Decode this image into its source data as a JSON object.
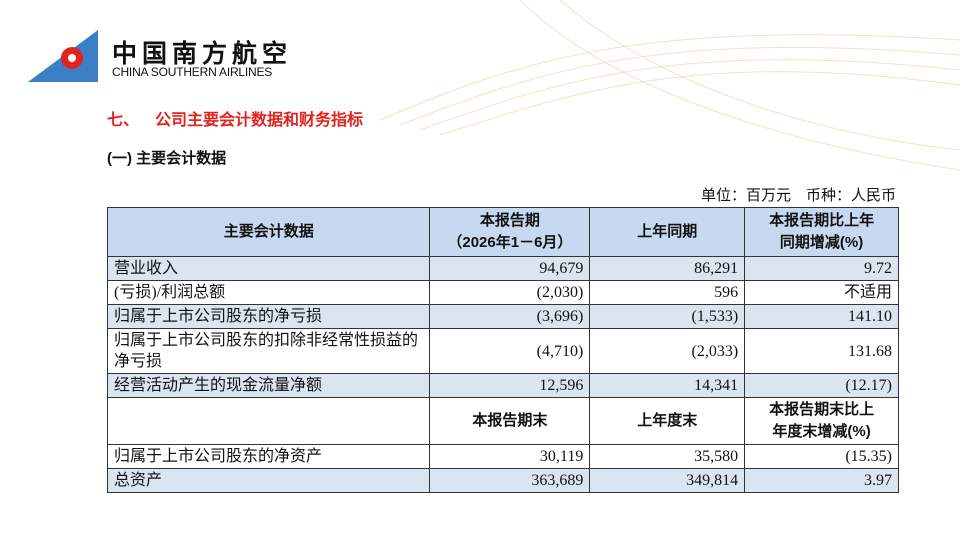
{
  "logo": {
    "name_cn": "中国南方航空",
    "name_en": "CHINA SOUTHERN AIRLINES"
  },
  "section": {
    "number": "七、",
    "title": "公司主要会计数据和财务指标"
  },
  "subsection": "(一) 主要会计数据",
  "unit_note": "单位：百万元　币种：人民币",
  "table": {
    "header": [
      "主要会计数据",
      [
        "本报告期",
        "（2026年1－6月）"
      ],
      "上年同期",
      [
        "本报告期比上年",
        "同期增减(%)"
      ]
    ],
    "rows": [
      [
        "营业收入",
        "94,679",
        "86,291",
        "9.72"
      ],
      [
        "(亏损)/利润总额",
        "(2,030)",
        "596",
        "不适用"
      ],
      [
        "归属于上市公司股东的净亏损",
        "(3,696)",
        "(1,533)",
        "141.10"
      ],
      [
        "归属于上市公司股东的扣除非经常性损益的净亏损",
        "(4,710)",
        "(2,033)",
        "131.68"
      ],
      [
        "经营活动产生的现金流量净额",
        "12,596",
        "14,341",
        "(12.17)"
      ]
    ],
    "header2": [
      "本报告期末",
      "上年度末",
      [
        "本报告期末比上",
        "年度末增减(%)"
      ]
    ],
    "rows2": [
      [
        "归属于上市公司股东的净资产",
        "30,119",
        "35,580",
        "(15.35)"
      ],
      [
        "总资产",
        "363,689",
        "349,814",
        "3.97"
      ]
    ]
  }
}
